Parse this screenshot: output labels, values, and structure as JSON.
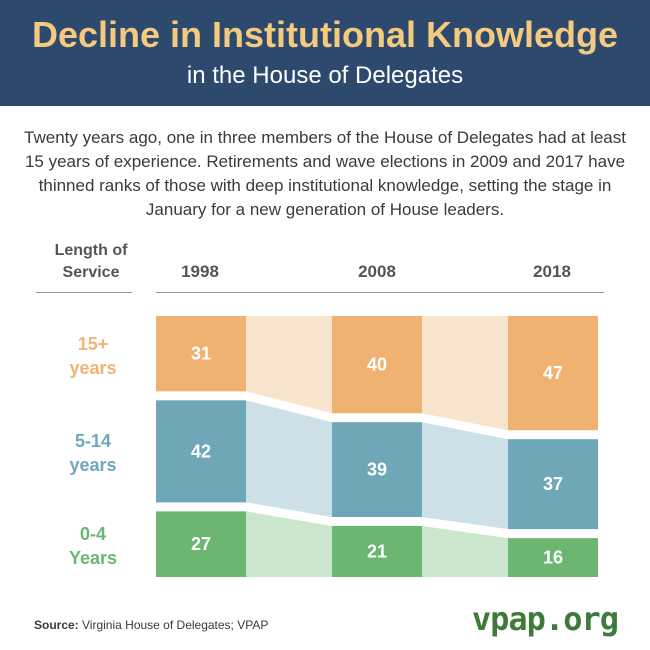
{
  "header": {
    "title": "Decline in Institutional Knowledge",
    "subtitle": "in the House of Delegates"
  },
  "intro": "Twenty years ago, one in three members of the House of Delegates had at least 15 years of experience. Retirements and wave elections in 2009 and 2017 have thinned ranks of those with deep institutional knowledge, setting the stage in January for a new generation of House leaders.",
  "row_header": {
    "line1": "Length of",
    "line2": "Service"
  },
  "rows": [
    {
      "line1": "15+",
      "line2": "years",
      "color": "#f0b474"
    },
    {
      "line1": "5-14",
      "line2": "years",
      "color": "#6fa8bc"
    },
    {
      "line1": "0-4",
      "line2": "Years",
      "color": "#6ab772"
    }
  ],
  "colors": {
    "fifteen_plus": "#efb271",
    "five_to_fourteen": "#6fa7b9",
    "zero_to_four": "#6cb672",
    "header_bg": "#2d4a6e",
    "title": "#f5c97e"
  },
  "chart_data": {
    "type": "bar",
    "categories": [
      "1998",
      "2008",
      "2018"
    ],
    "series": [
      {
        "name": "15+ years",
        "values": [
          31,
          40,
          47
        ]
      },
      {
        "name": "5-14 years",
        "values": [
          42,
          39,
          37
        ]
      },
      {
        "name": "0-4 Years",
        "values": [
          27,
          21,
          16
        ]
      }
    ],
    "title": "Decline in Institutional Knowledge",
    "ylabel": "Length of Service"
  },
  "source": {
    "label": "Source:",
    "text": " Virginia House of Delegates; VPAP"
  },
  "brand": "vpap.org"
}
